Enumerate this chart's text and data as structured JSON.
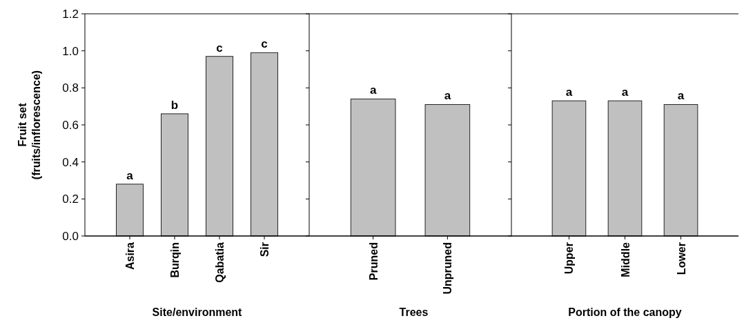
{
  "chart_data": [
    {
      "type": "bar",
      "ylabel": "Fruit set\n(fruits/inflorescence)",
      "xlabel": "Site/environment",
      "categories": [
        "Asira",
        "Burqin",
        "Qabatia",
        "Sir"
      ],
      "values": [
        0.28,
        0.66,
        0.97,
        0.99
      ],
      "color": "#c0c0c0",
      "ylim": [
        0,
        1.2
      ],
      "yticks": [
        {
          "value": 0,
          "label": "0.0"
        },
        0.2,
        0.4,
        0.6,
        0.8,
        {
          "value": 1,
          "label": "1.0"
        },
        1.2
      ],
      "annotations": [
        {
          "text": "a",
          "x": "Asira",
          "y": 0.28
        },
        {
          "text": "b",
          "x": "Burqin",
          "y": 0.66
        },
        {
          "text": "c",
          "x": "Qabatia",
          "y": 0.97
        },
        {
          "text": "c",
          "x": "Sir",
          "y": 0.99
        }
      ]
    },
    {
      "type": "bar",
      "xlabel": "Trees",
      "categories": [
        "Pruned",
        "Unpruned"
      ],
      "values": [
        0.74,
        0.71
      ],
      "color": "#c0c0c0",
      "ylim": [
        0,
        1.2
      ],
      "yticks": [
        {
          "value": 0,
          "label": null
        },
        {
          "value": 0.2,
          "label": null
        },
        {
          "value": 0.4,
          "label": null
        },
        {
          "value": 0.6,
          "label": null
        },
        {
          "value": 0.8,
          "label": null
        },
        {
          "value": 1.0,
          "label": null
        },
        {
          "value": 1.2,
          "label": null
        }
      ],
      "tick_labels": "x",
      "annotations": [
        {
          "text": "a",
          "x": "Pruned",
          "y": 0.74
        },
        {
          "text": "a",
          "x": "Unpruned",
          "y": 0.71
        }
      ]
    },
    {
      "type": "bar",
      "xlabel": "Portion of the canopy",
      "categories": [
        "Upper",
        "Middle",
        "Lower"
      ],
      "values": [
        0.73,
        0.73,
        0.71
      ],
      "color": "#c0c0c0",
      "ylim": [
        0,
        1.2
      ],
      "yticks": [
        {
          "value": 0,
          "label": null
        },
        {
          "value": 0.2,
          "label": null
        },
        {
          "value": 0.4,
          "label": null
        },
        {
          "value": 0.6,
          "label": null
        },
        {
          "value": 0.8,
          "label": null
        },
        {
          "value": 1.0,
          "label": null
        },
        {
          "value": 1.2,
          "label": null
        }
      ],
      "tick_labels": "x",
      "annotations": [
        {
          "text": "a",
          "x": "Upper",
          "y": 0.73
        },
        {
          "text": "a",
          "x": "Middle",
          "y": 0.73
        },
        {
          "text": "a",
          "x": "Lower",
          "y": 0.71
        }
      ]
    }
  ]
}
